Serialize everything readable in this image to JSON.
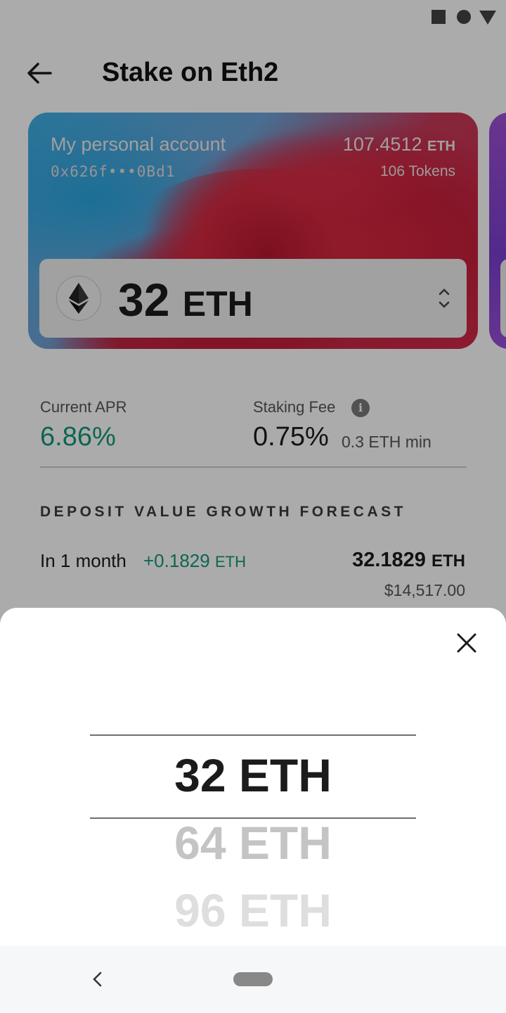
{
  "header": {
    "title": "Stake on Eth2"
  },
  "account_card": {
    "name": "My personal account",
    "address": "0x626f•••0Bd1",
    "balance_value": "107.4512",
    "balance_unit": "ETH",
    "tokens": "106 Tokens"
  },
  "amount_selector": {
    "value": "32",
    "unit": "ETH"
  },
  "stats": {
    "apr_label": "Current APR",
    "apr_value": "6.86%",
    "fee_label": "Staking Fee",
    "fee_value": "0.75%",
    "fee_min": "0.3 ETH min"
  },
  "forecast": {
    "title": "DEPOSIT VALUE GROWTH FORECAST",
    "period": "In 1 month",
    "gain_value": "+0.1829",
    "gain_unit": "ETH",
    "total_value": "32.1829",
    "total_unit": "ETH",
    "usd_value": "$14,517.00"
  },
  "picker": {
    "options": [
      {
        "value": "32",
        "unit": "ETH"
      },
      {
        "value": "64",
        "unit": "ETH"
      },
      {
        "value": "96",
        "unit": "ETH"
      }
    ],
    "selected_value": "32 ETH"
  },
  "colors": {
    "accent_green": "#14997a",
    "scrim": "rgba(0,0,0,0.33)"
  },
  "icons": {
    "back": "arrow-left-icon",
    "eth": "ethereum-icon",
    "stepper": "chevron-up-down-icon",
    "info": "info-icon",
    "close": "close-icon",
    "nav_back": "chevron-left-icon"
  }
}
